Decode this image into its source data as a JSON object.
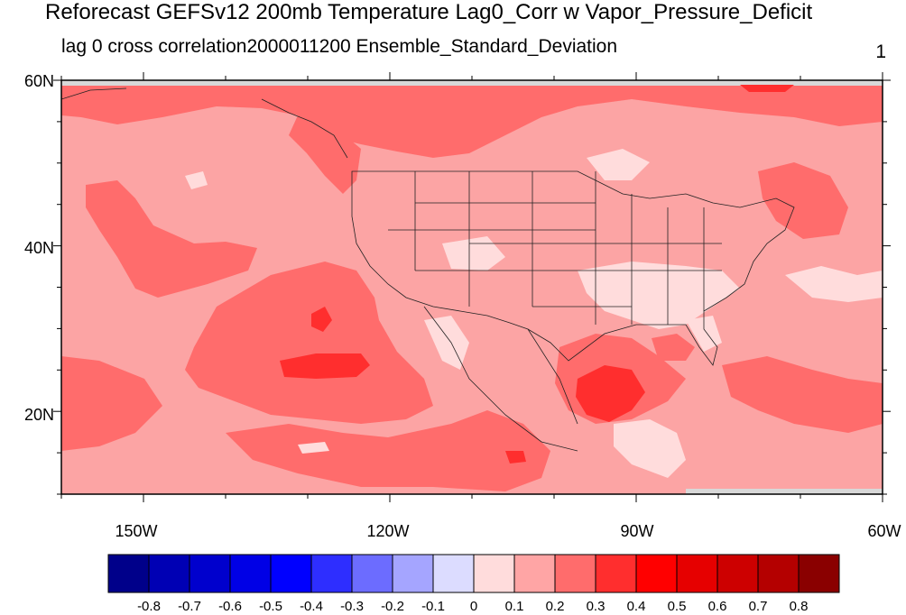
{
  "title": "Reforecast GEFSv12 200mb Temperature Lag0_Corr w Vapor_Pressure_Deficit",
  "subtitle_left": "lag 0 cross correlation",
  "subtitle_date": "2000011200",
  "subtitle_field": "Ensemble_Standard_Deviation",
  "subtitle_right": "1",
  "map": {
    "lon_range": [
      -160,
      -60
    ],
    "lat_range": [
      10,
      60
    ],
    "lat_labels": [
      "60N",
      "40N",
      "20N"
    ],
    "lon_labels": [
      "150W",
      "120W",
      "90W",
      "60W"
    ],
    "background_color": "#fca4a4"
  },
  "colorbar": {
    "colors": [
      "#00008a",
      "#0000b4",
      "#0000cd",
      "#0000e6",
      "#0000ff",
      "#2e2eff",
      "#6c6cff",
      "#a5a5ff",
      "#dcdcff",
      "#ffdcdc",
      "#ffa5a5",
      "#ff6c6c",
      "#ff2e2e",
      "#ff0000",
      "#e60000",
      "#cd0000",
      "#b40000",
      "#8a0000"
    ],
    "labels": [
      "-0.8",
      "-0.7",
      "-0.6",
      "-0.5",
      "-0.4",
      "-0.3",
      "-0.2",
      "-0.1",
      "0",
      "0.1",
      "0.2",
      "0.3",
      "0.4",
      "0.5",
      "0.6",
      "0.7",
      "0.8"
    ]
  }
}
